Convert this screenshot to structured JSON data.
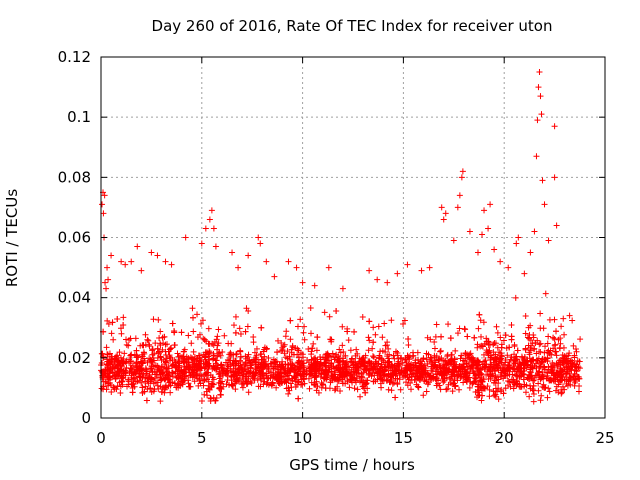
{
  "chart_data": {
    "type": "scatter",
    "title": "Day 260 of 2016, Rate Of TEC Index for receiver uton",
    "xlabel": "GPS time / hours",
    "ylabel": "ROTI / TECUs",
    "xlim": [
      0,
      25
    ],
    "ylim": [
      0,
      0.12
    ],
    "xticks": [
      0,
      5,
      10,
      15,
      20,
      25
    ],
    "xtick_labels": [
      "0",
      "5",
      "10",
      "15",
      "20",
      "25"
    ],
    "yticks": [
      0,
      0.02,
      0.04,
      0.06,
      0.08,
      0.1,
      0.12
    ],
    "ytick_labels": [
      "0",
      "0.02",
      "0.04",
      "0.06",
      "0.08",
      "0.1",
      "0.12"
    ],
    "grid": true,
    "marker": "+",
    "color": "#ff0000",
    "series": [
      {
        "name": "ROTI",
        "points": [
          [
            0.05,
            0.071
          ],
          [
            0.1,
            0.075
          ],
          [
            0.12,
            0.068
          ],
          [
            0.15,
            0.06
          ],
          [
            0.18,
            0.074
          ],
          [
            0.2,
            0.045
          ],
          [
            0.25,
            0.043
          ],
          [
            0.3,
            0.05
          ],
          [
            0.35,
            0.046
          ],
          [
            0.5,
            0.054
          ],
          [
            1.0,
            0.052
          ],
          [
            1.2,
            0.051
          ],
          [
            1.5,
            0.052
          ],
          [
            1.8,
            0.057
          ],
          [
            2.0,
            0.049
          ],
          [
            2.5,
            0.055
          ],
          [
            2.8,
            0.054
          ],
          [
            3.2,
            0.052
          ],
          [
            3.5,
            0.051
          ],
          [
            4.2,
            0.06
          ],
          [
            5.0,
            0.058
          ],
          [
            5.2,
            0.063
          ],
          [
            5.4,
            0.066
          ],
          [
            5.5,
            0.069
          ],
          [
            5.6,
            0.063
          ],
          [
            5.7,
            0.057
          ],
          [
            6.5,
            0.055
          ],
          [
            6.8,
            0.05
          ],
          [
            7.3,
            0.054
          ],
          [
            7.8,
            0.06
          ],
          [
            7.9,
            0.058
          ],
          [
            8.2,
            0.052
          ],
          [
            8.6,
            0.047
          ],
          [
            9.3,
            0.052
          ],
          [
            9.7,
            0.05
          ],
          [
            10.0,
            0.045
          ],
          [
            10.6,
            0.044
          ],
          [
            11.3,
            0.05
          ],
          [
            12.0,
            0.043
          ],
          [
            13.3,
            0.049
          ],
          [
            13.7,
            0.046
          ],
          [
            14.2,
            0.045
          ],
          [
            14.7,
            0.048
          ],
          [
            15.2,
            0.051
          ],
          [
            15.9,
            0.049
          ],
          [
            16.3,
            0.05
          ],
          [
            16.9,
            0.07
          ],
          [
            17.0,
            0.066
          ],
          [
            17.1,
            0.068
          ],
          [
            17.5,
            0.059
          ],
          [
            17.7,
            0.07
          ],
          [
            17.8,
            0.074
          ],
          [
            17.9,
            0.08
          ],
          [
            17.95,
            0.082
          ],
          [
            18.3,
            0.062
          ],
          [
            18.7,
            0.055
          ],
          [
            18.9,
            0.061
          ],
          [
            19.0,
            0.069
          ],
          [
            19.2,
            0.063
          ],
          [
            19.3,
            0.071
          ],
          [
            19.5,
            0.056
          ],
          [
            19.8,
            0.052
          ],
          [
            20.2,
            0.05
          ],
          [
            20.6,
            0.058
          ],
          [
            20.7,
            0.06
          ],
          [
            21.0,
            0.048
          ],
          [
            21.3,
            0.055
          ],
          [
            21.5,
            0.062
          ],
          [
            21.6,
            0.087
          ],
          [
            21.65,
            0.099
          ],
          [
            21.7,
            0.11
          ],
          [
            21.75,
            0.115
          ],
          [
            21.8,
            0.107
          ],
          [
            21.85,
            0.101
          ],
          [
            21.9,
            0.079
          ],
          [
            22.0,
            0.071
          ],
          [
            22.2,
            0.059
          ],
          [
            22.5,
            0.097
          ],
          [
            22.5,
            0.08
          ],
          [
            22.6,
            0.064
          ]
        ]
      }
    ]
  }
}
